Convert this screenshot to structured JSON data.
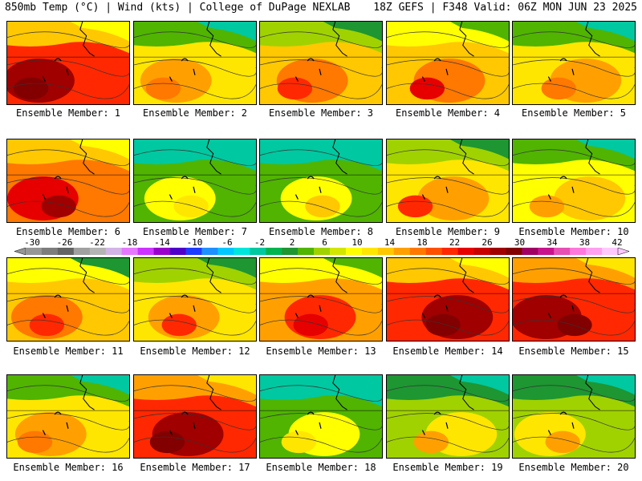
{
  "header": {
    "left_title": "850mb Temp (°C) | Wind (kts) | College of DuPage NEXLAB",
    "right_title": "18Z GEFS | F348 Valid: 06Z MON JUN 23 2025"
  },
  "colorbar": {
    "labels": [
      "-30",
      "-26",
      "-22",
      "-18",
      "-14",
      "-10",
      "-6",
      "-2",
      "2",
      "6",
      "10",
      "14",
      "18",
      "22",
      "26",
      "30",
      "34",
      "38",
      "42"
    ],
    "colors": [
      "#969696",
      "#7d7d7d",
      "#646464",
      "#a0a0a0",
      "#b4b4b4",
      "#d2b4e6",
      "#e678ff",
      "#cc33ff",
      "#9900cc",
      "#5000c8",
      "#1e3cff",
      "#1e90ff",
      "#00c8ff",
      "#00e6dc",
      "#00c8a0",
      "#00b450",
      "#1e9632",
      "#50b400",
      "#a0d200",
      "#d2e600",
      "#ffff00",
      "#ffe600",
      "#ffc800",
      "#ffa000",
      "#ff7800",
      "#ff5000",
      "#ff2800",
      "#e60000",
      "#c80000",
      "#a00000",
      "#820000",
      "#a00064",
      "#c8148c",
      "#e650b4",
      "#ff78dc",
      "#ffa0f0",
      "#ffc8ff"
    ]
  },
  "members": [
    {
      "label": "Ensemble Member: 1",
      "temp_level": 0.85
    },
    {
      "label": "Ensemble Member: 2",
      "temp_level": 0.55
    },
    {
      "label": "Ensemble Member: 3",
      "temp_level": 0.62
    },
    {
      "label": "Ensemble Member: 4",
      "temp_level": 0.68
    },
    {
      "label": "Ensemble Member: 5",
      "temp_level": 0.55
    },
    {
      "label": "Ensemble Member: 6",
      "temp_level": 0.8
    },
    {
      "label": "Ensemble Member: 7",
      "temp_level": 0.35
    },
    {
      "label": "Ensemble Member: 8",
      "temp_level": 0.38
    },
    {
      "label": "Ensemble Member: 9",
      "temp_level": 0.6
    },
    {
      "label": "Ensemble Member: 10",
      "temp_level": 0.5
    },
    {
      "label": "Ensemble Member: 11",
      "temp_level": 0.63
    },
    {
      "label": "Ensemble Member: 12",
      "temp_level": 0.6
    },
    {
      "label": "Ensemble Member: 13",
      "temp_level": 0.7
    },
    {
      "label": "Ensemble Member: 14",
      "temp_level": 0.85
    },
    {
      "label": "Ensemble Member: 15",
      "temp_level": 0.88
    },
    {
      "label": "Ensemble Member: 16",
      "temp_level": 0.55
    },
    {
      "label": "Ensemble Member: 17",
      "temp_level": 0.9
    },
    {
      "label": "Ensemble Member: 18",
      "temp_level": 0.35
    },
    {
      "label": "Ensemble Member: 19",
      "temp_level": 0.45
    },
    {
      "label": "Ensemble Member: 20",
      "temp_level": 0.45
    }
  ]
}
